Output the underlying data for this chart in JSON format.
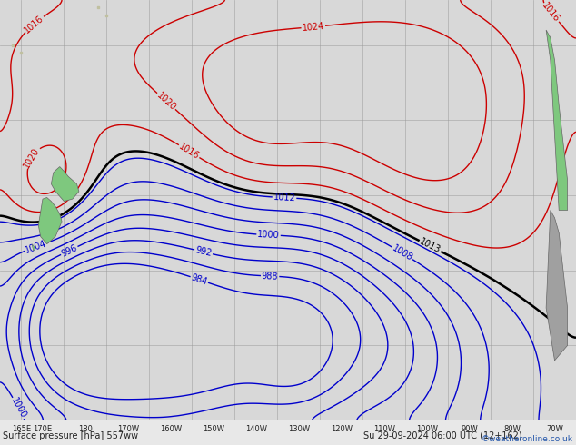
{
  "title_left": "Surface pressure [hPa] 557ww",
  "title_right": "Su 29-09-2024 06:00 UTC (12+162)",
  "copyright": "©weatheronline.co.uk",
  "map_bg": "#d8d8d8",
  "land_color_green": "#7ec87e",
  "land_color_gray": "#a0a0a0",
  "grid_color": "#999999",
  "pressure_levels_black": [
    1013
  ],
  "pressure_levels_blue": [
    984,
    988,
    992,
    996,
    1000,
    1004,
    1008,
    1012
  ],
  "pressure_levels_red": [
    1016,
    1020,
    1024
  ],
  "blue_color": "#0000cc",
  "red_color": "#cc0000",
  "black_color": "#000000",
  "bottom_bg": "#e8e8e8",
  "copyright_color": "#2255aa",
  "text_color": "#222222"
}
